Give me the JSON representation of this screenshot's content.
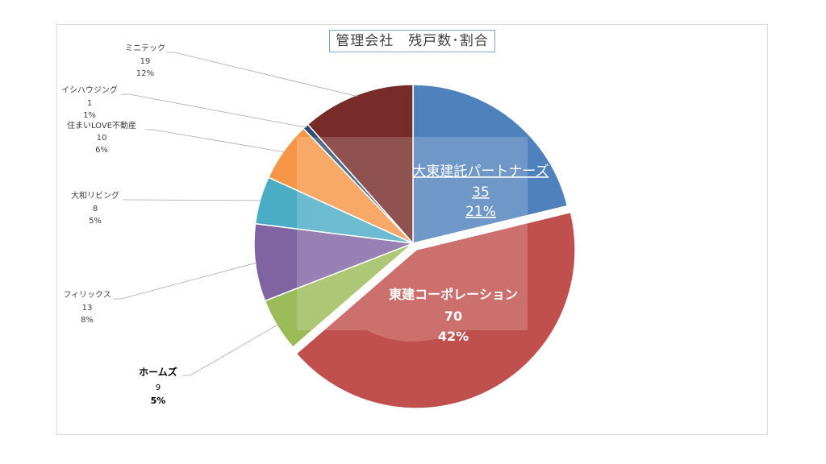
{
  "chart_data": {
    "type": "pie",
    "title": "管理会社　残戸数･割合",
    "slices": [
      {
        "label": "大東建託パートナーズ",
        "value": 35,
        "percent": "21%",
        "color": "#4f81bd"
      },
      {
        "label": "東建コーポレーション",
        "value": 70,
        "percent": "42%",
        "color": "#c0504d"
      },
      {
        "label": "ホームズ",
        "value": 9,
        "percent": "5%",
        "color": "#9bbb59"
      },
      {
        "label": "フィリックス",
        "value": 13,
        "percent": "8%",
        "color": "#8064a2"
      },
      {
        "label": "大和リビング",
        "value": 8,
        "percent": "5%",
        "color": "#4bacc6"
      },
      {
        "label": "住まいLOVE不動産",
        "value": 10,
        "percent": "6%",
        "color": "#f79646"
      },
      {
        "label": "イシハウジング",
        "value": 1,
        "percent": "1%",
        "color": "#2c4d75"
      },
      {
        "label": "ミニテック",
        "value": 19,
        "percent": "12%",
        "color": "#772c2a"
      }
    ]
  }
}
